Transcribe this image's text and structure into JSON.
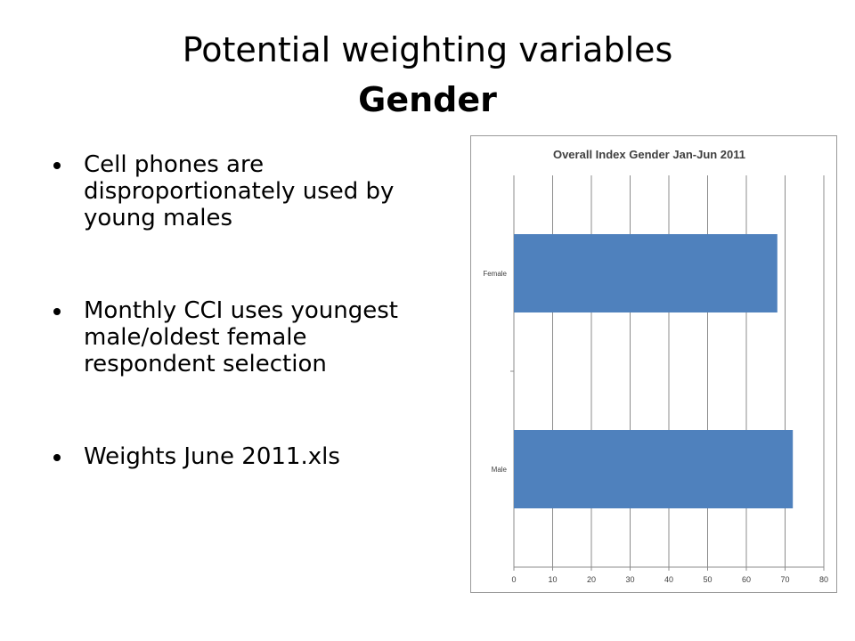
{
  "slide": {
    "title_line1": "Potential weighting variables",
    "title_line2": "Gender",
    "bullets": [
      "Cell phones are disproportionately used by young males",
      "Monthly CCI uses youngest male/oldest female respondent selection",
      "Weights June 2011.xls"
    ]
  },
  "chart_data": {
    "type": "bar",
    "orientation": "horizontal",
    "title": "Overall Index Gender Jan-Jun 2011",
    "categories": [
      "Female",
      "Male"
    ],
    "values": [
      68,
      72
    ],
    "xlim": [
      0,
      80
    ],
    "xticks": [
      "0",
      "10",
      "20",
      "30",
      "40",
      "50",
      "60",
      "70",
      "80"
    ],
    "grid": true,
    "bar_color": "#4f81bd"
  }
}
